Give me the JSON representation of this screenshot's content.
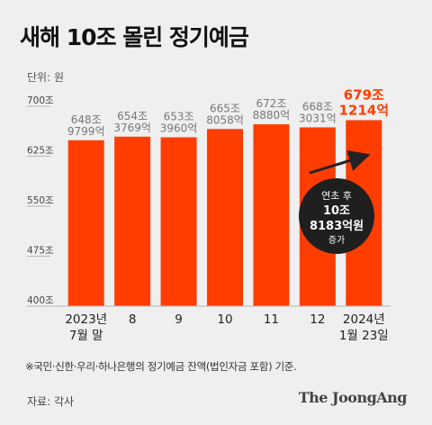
{
  "title": "새해 10조 몰린 정기예금",
  "unit_label": "단위: 원",
  "footnote": "※국민·신한·우리·하나은행의 정기예금 잔액(법인자금 포함) 기준.",
  "source": "자료: 각사",
  "brand": "The JoongAng",
  "colors": {
    "bar": "#ff3d00",
    "highlight_text": "#ff3d00",
    "label_text": "#777777",
    "axis": "#b5b5b5",
    "callout_bg": "#1f1f1f",
    "callout_text": "#ffffff",
    "arrow": "#222222"
  },
  "chart_data": {
    "type": "bar",
    "categories": [
      [
        "2023년",
        "7월 말"
      ],
      [
        "8"
      ],
      [
        "9"
      ],
      [
        "10"
      ],
      [
        "11"
      ],
      [
        "12"
      ],
      [
        "2024년",
        "1월 23일"
      ]
    ],
    "values": [
      648.9799,
      654.3769,
      653.396,
      665.8058,
      672.888,
      668.3031,
      679.1214
    ],
    "value_labels": [
      [
        "648조",
        "9799억"
      ],
      [
        "654조",
        "3769억"
      ],
      [
        "653조",
        "3960억"
      ],
      [
        "665조",
        "8058억"
      ],
      [
        "672조",
        "8880억"
      ],
      [
        "668조",
        "3031억"
      ],
      [
        "679조",
        "1214억"
      ]
    ],
    "highlight_index": 6,
    "y_ticks": [
      400,
      475,
      550,
      625,
      700
    ],
    "y_tick_labels": [
      "400조",
      "475조",
      "550조",
      "625조",
      "700조"
    ],
    "ylim": [
      400,
      710
    ],
    "grid": false,
    "annotation": {
      "lines": [
        "연초 후",
        "10조",
        "8183억원",
        "증가"
      ]
    }
  }
}
